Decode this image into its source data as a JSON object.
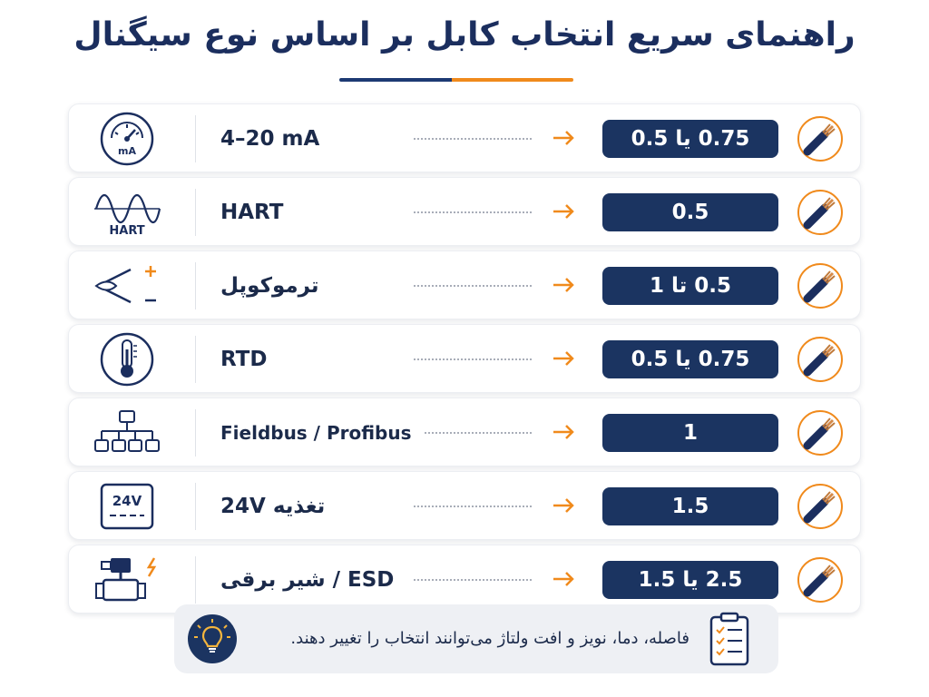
{
  "title": "راهنمای سریع انتخاب کابل بر اساس نوع سیگنال",
  "colors": {
    "navy": "#1b3461",
    "orange": "#f08a1c",
    "title": "#1b2e5e"
  },
  "rows": [
    {
      "icon": "current-meter-icon",
      "icon_label": "mA",
      "signal": "4–20 mA",
      "size": "0.75 یا 0.5"
    },
    {
      "icon": "hart-wave-icon",
      "icon_label": "HART",
      "signal": "HART",
      "size": "0.5"
    },
    {
      "icon": "thermocouple-icon",
      "signal": "ترموکوپل",
      "size": "0.5 تا 1"
    },
    {
      "icon": "thermometer-icon",
      "signal": "RTD",
      "size": "0.75 یا 0.5"
    },
    {
      "icon": "network-tree-icon",
      "signal": "Fieldbus / Profibus",
      "size": "1"
    },
    {
      "icon": "power-supply-icon",
      "icon_label": "24V",
      "signal": "تغذیه 24V",
      "size": "1.5"
    },
    {
      "icon": "solenoid-valve-icon",
      "signal": "ESD / شیر برقی",
      "size": "2.5 یا 1.5"
    }
  ],
  "note": {
    "icon": "lightbulb-icon",
    "text": "فاصله، دما، نویز و افت ولتاژ می‌توانند انتخاب را تغییر دهند.",
    "side_icon": "clipboard-checklist-icon"
  }
}
